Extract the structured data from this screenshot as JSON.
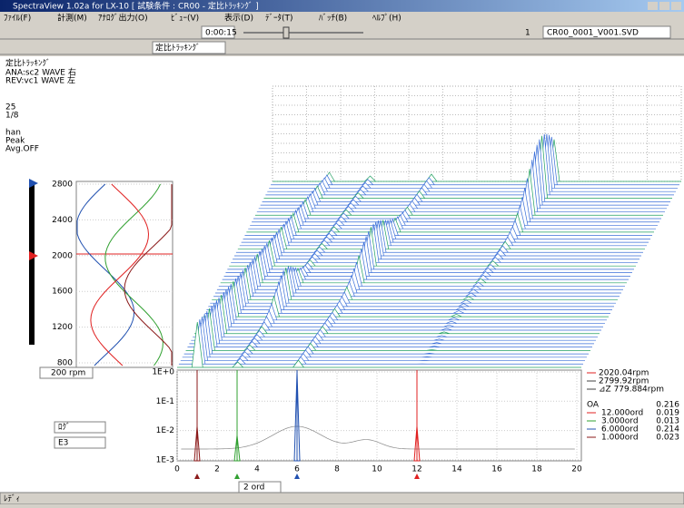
{
  "window": {
    "title": "SpectraView 1.02a for LX-10 [ 試験条件 : CR00 - 定比ﾄﾗｯｷﾝｸﾞ ]"
  },
  "menu": [
    "ﾌｧｲﾙ(F)",
    "計測(M)",
    "ｱﾅﾛｸﾞ出力(O)",
    "ﾋﾞｭｰ(V)",
    "表示(D)",
    "ﾃﾞｰﾀ(T)",
    "ﾊﾞｯﾁ(B)",
    "ﾍﾙﾌﾟ(H)"
  ],
  "toolbar": {
    "time": "0:00:15",
    "channel": "1",
    "file": "CR00_0001_V001.SVD",
    "mode": "定比ﾄﾗｯｷﾝｸﾞ"
  },
  "info": [
    "定比ﾄﾗｯｷﾝｸﾞ",
    "ANA:sc2 WAVE 右",
    "REV:vc1 WAVE 左",
    "25",
    "1/8",
    "han",
    "Peak",
    "Avg.OFF"
  ],
  "rpm_plot": {
    "yticks": [
      "2800",
      "2400",
      "2000",
      "1600",
      "1200",
      "800"
    ],
    "step": "200 rpm"
  },
  "spectrum": {
    "yticks": [
      "1E+0",
      "1E-1",
      "1E-2",
      "1E-3"
    ],
    "xticks": [
      "0",
      "2",
      "4",
      "6",
      "8",
      "10",
      "12",
      "14",
      "16",
      "18",
      "20"
    ],
    "order": "2 ord",
    "scale": "ﾛｸﾞ",
    "unit": "E3"
  },
  "legend": {
    "lines": [
      "2020.04rpm",
      "2799.92rpm",
      "⊿Z 779.884rpm"
    ],
    "rows": [
      [
        "OA",
        "0.216"
      ],
      [
        "12.000ord",
        "0.019"
      ],
      [
        "3.000ord",
        "0.013"
      ],
      [
        "6.000ord",
        "0.214"
      ],
      [
        "1.000ord",
        "0.023"
      ]
    ]
  },
  "status": "ﾚﾃﾞｨ"
}
